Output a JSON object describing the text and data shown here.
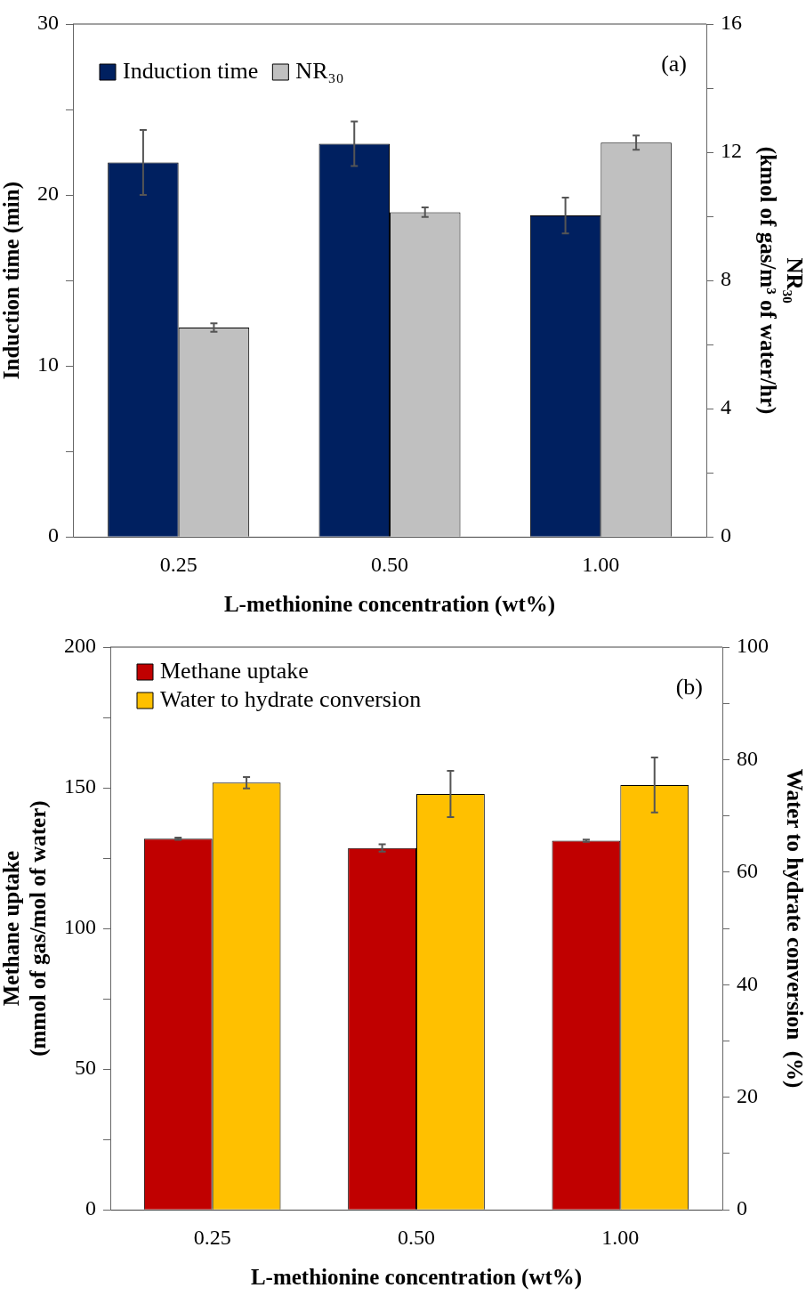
{
  "chart_data": [
    {
      "type": "bar",
      "categories": [
        "0.25",
        "0.50",
        "1.00"
      ],
      "xlabel": "L-methionine concentration (wt%)",
      "ylabel": "Induction time (min)",
      "y2label": "NR₃₀\n(kmol of gas/m³ of water/hr)",
      "series": [
        {
          "name": "Induction time",
          "color": "#002060",
          "values": [
            21.9,
            23.0,
            18.8
          ],
          "errors": [
            1.9,
            1.3,
            1.05
          ]
        },
        {
          "name": "NR₃₀",
          "color": "#c0c0c0",
          "axis": "y2",
          "values": [
            6.53,
            10.13,
            12.3
          ],
          "errors": [
            0.13,
            0.15,
            0.22
          ]
        }
      ],
      "ylim": [
        0,
        30
      ],
      "yticks": [
        0,
        {
          "value": 5,
          "label": null
        },
        10,
        {
          "value": 15,
          "label": null
        },
        20,
        {
          "value": 25,
          "label": null
        },
        30
      ],
      "y2lim": [
        0,
        16
      ],
      "y2ticks": [
        0,
        {
          "value": 2,
          "label": null
        },
        4,
        {
          "value": 6,
          "label": null
        },
        8,
        {
          "value": 10,
          "label": null
        },
        12,
        {
          "value": 14,
          "label": null
        },
        16
      ],
      "grid": false,
      "legend": "top left",
      "annotations": [
        "(a)"
      ]
    },
    {
      "type": "bar",
      "categories": [
        "0.25",
        "0.50",
        "1.00"
      ],
      "xlabel": "L-methionine concentration (wt%)",
      "ylabel": "Methane uptake\n(mmol of gas/mol of water)",
      "y2label": "Water to hydrate conversion  (%)",
      "series": [
        {
          "name": "Methane uptake",
          "color": "#c00000",
          "values": [
            131.9,
            128.6,
            131.2
          ],
          "errors": [
            0.4,
            1.3,
            0.4
          ]
        },
        {
          "name": "Water to hydrate conversion",
          "color": "#ffc000",
          "axis": "y2",
          "values": [
            75.9,
            73.9,
            75.5
          ],
          "errors": [
            1.0,
            4.1,
            4.9
          ]
        }
      ],
      "ylim": [
        0,
        200
      ],
      "yticks": [
        0,
        {
          "value": 25,
          "label": null
        },
        50,
        {
          "value": 75,
          "label": null
        },
        100,
        {
          "value": 125,
          "label": null
        },
        150,
        {
          "value": 175,
          "label": null
        },
        200
      ],
      "y2lim": [
        0,
        100
      ],
      "y2ticks": [
        0,
        {
          "value": 10,
          "label": null
        },
        20,
        {
          "value": 30,
          "label": null
        },
        40,
        {
          "value": 50,
          "label": null
        },
        60,
        {
          "value": 70,
          "label": null
        },
        80,
        {
          "value": 90,
          "label": null
        },
        100
      ],
      "grid": false,
      "legend": "top left",
      "annotations": [
        "(b)"
      ]
    }
  ]
}
